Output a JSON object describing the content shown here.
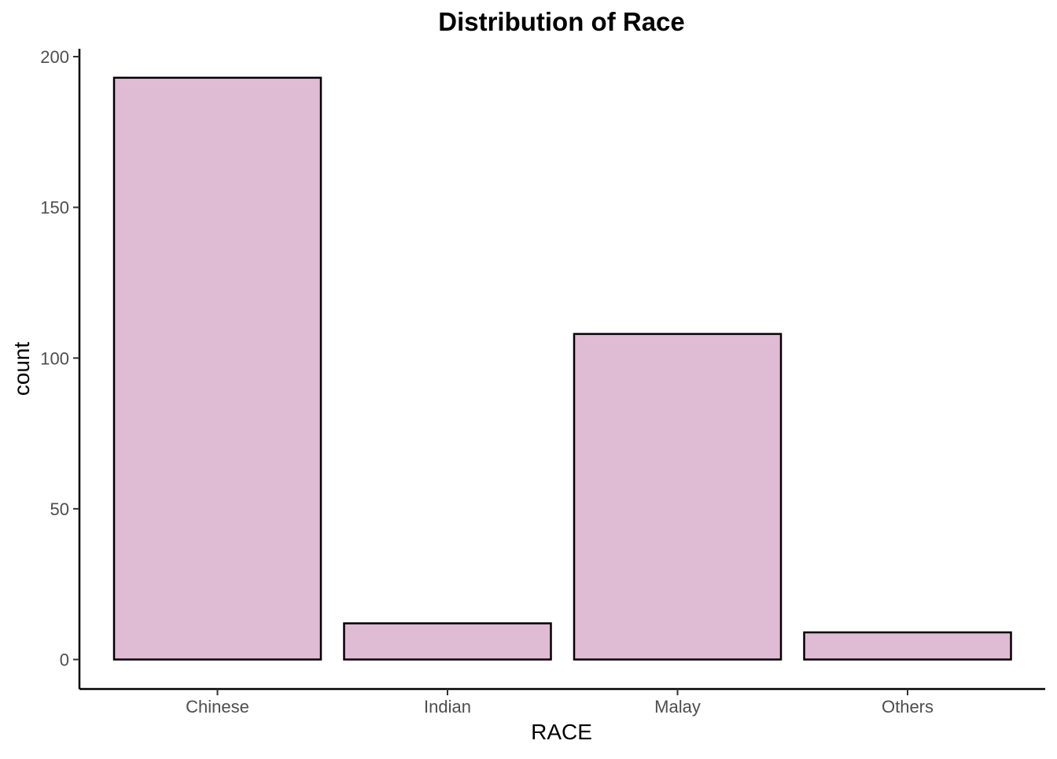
{
  "chart_data": {
    "type": "bar",
    "title": "Distribution of Race",
    "xlabel": "RACE",
    "ylabel": "count",
    "categories": [
      "Chinese",
      "Indian",
      "Malay",
      "Others"
    ],
    "values": [
      193,
      12,
      108,
      9
    ],
    "ylim": [
      0,
      200
    ],
    "yticks": [
      0,
      50,
      100,
      150,
      200
    ],
    "grid": false,
    "legend": "none",
    "bar_fill": "#e0bbd4",
    "bar_stroke": "#000000"
  }
}
